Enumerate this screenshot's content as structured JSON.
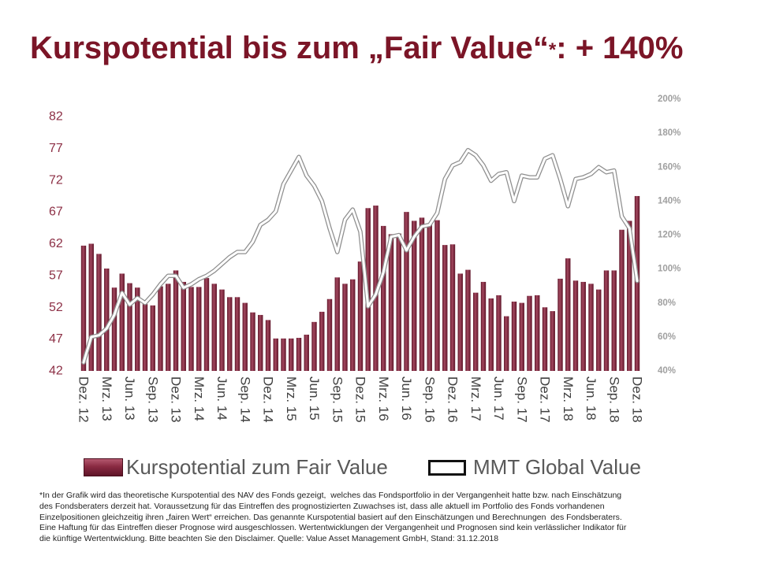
{
  "slide": {
    "title_main": "Kurspotential bis zum „Fair Value“",
    "title_asterisk": "*",
    "title_suffix": ": + 140%"
  },
  "chart_data": {
    "type": "bar",
    "categories": [
      "Dez. 12",
      "",
      "",
      "Mrz. 13",
      "",
      "",
      "Jun. 13",
      "",
      "",
      "Sep. 13",
      "",
      "",
      "Dez. 13",
      "",
      "",
      "Mrz. 14",
      "",
      "",
      "Jun. 14",
      "",
      "",
      "Sep. 14",
      "",
      "",
      "Dez. 14",
      "",
      "",
      "Mrz. 15",
      "",
      "",
      "Jun. 15",
      "",
      "",
      "Sep. 15",
      "",
      "",
      "Dez. 15",
      "",
      "",
      "Mrz. 16",
      "",
      "",
      "Jun. 16",
      "",
      "",
      "Sep. 16",
      "",
      "",
      "Dez. 16",
      "",
      "",
      "Mrz. 17",
      "",
      "",
      "Jun. 17",
      "",
      "",
      "Sep. 17",
      "",
      "",
      "Dez. 17",
      "",
      "",
      "Mrz. 18",
      "",
      "",
      "Jun. 18",
      "",
      "",
      "Sep. 18",
      "",
      "",
      "Dez. 18"
    ],
    "series": [
      {
        "name": "Kurspotential zum Fair Value",
        "type": "bar",
        "axis": "left",
        "values": [
          61.7,
          62.0,
          60.4,
          58.1,
          55.1,
          57.3,
          55.8,
          55.1,
          52.5,
          52.3,
          55.3,
          55.7,
          57.8,
          56.0,
          55.2,
          55.2,
          56.6,
          55.7,
          54.8,
          53.6,
          53.6,
          52.7,
          51.2,
          50.8,
          50.0,
          47.1,
          47.1,
          47.1,
          47.2,
          47.7,
          49.7,
          51.3,
          53.3,
          56.7,
          55.7,
          56.4,
          59.2,
          67.6,
          68.0,
          64.8,
          63.5,
          63.6,
          67.0,
          65.6,
          66.1,
          65.0,
          65.7,
          61.8,
          61.9,
          57.3,
          57.9,
          54.3,
          56.0,
          53.4,
          53.9,
          50.6,
          52.9,
          52.7,
          53.8,
          53.9,
          52.0,
          51.4,
          56.5,
          59.7,
          56.2,
          56.0,
          55.7,
          54.8,
          57.8,
          57.8,
          64.2,
          65.6,
          69.5
        ]
      },
      {
        "name": "MMT Global Value",
        "type": "line",
        "axis": "right",
        "values": [
          45,
          60,
          61,
          65,
          73,
          86,
          79,
          83,
          80,
          85,
          91,
          96,
          96,
          89,
          91,
          94,
          96,
          99,
          103,
          107,
          110,
          110,
          116,
          126,
          129,
          134,
          150,
          158,
          166,
          155,
          149,
          140,
          124,
          110,
          129,
          135,
          122,
          78,
          85,
          98,
          119,
          120,
          111,
          119,
          125,
          126,
          133,
          153,
          161,
          163,
          170,
          167,
          161,
          152,
          156,
          157,
          140,
          155,
          154,
          154,
          165,
          167,
          153,
          137,
          153,
          154,
          156,
          160,
          157,
          158,
          131,
          124,
          93
        ]
      }
    ],
    "y_left": {
      "ticks": [
        42,
        47,
        52,
        57,
        62,
        67,
        72,
        77,
        82
      ],
      "range": [
        42,
        82
      ]
    },
    "y_right": {
      "tick_labels": [
        "40%",
        "60%",
        "80%",
        "100%",
        "120%",
        "140%",
        "160%",
        "180%",
        "200%"
      ],
      "range": [
        40,
        200
      ]
    },
    "xlabel": "",
    "ylabel": "",
    "grid": false,
    "legend": "bottom"
  },
  "footnote": {
    "lines": [
      "*In der Grafik wird das theoretische Kurspotential des NAV des Fonds gezeigt,  welches das Fondsportfolio in der Vergangenheit hatte bzw. nach Einschätzung",
      "des Fondsberaters derzeit hat. Voraussetzung für das Eintreffen des prognostizierten Zuwachses ist, dass alle aktuell im Portfolio des Fonds vorhandenen",
      "Einzelpositionen gleichzeitig ihren „fairen Wert“ erreichen. Das genannte Kurspotential basiert auf den Einschätzungen und Berechnungen  des Fondsberaters.",
      "Eine Haftung für das Eintreffen dieser Prognose wird ausgeschlossen. Wertentwicklungen der Vergangenheit und Prognosen sind kein verlässlicher Indikator für",
      "die künftige Wertentwicklung. Bitte beachten Sie den Disclaimer. Quelle: Value Asset Management GmbH, Stand: 31.12.2018"
    ]
  },
  "colors": {
    "title": "#7b1527",
    "bar_dark": "#5e1428",
    "bar_light": "#a3485f",
    "line": "#ffffff",
    "line_outline": "#8e8e8e",
    "left_tick_labels": "#8c2f45",
    "right_tick_labels": "#a0a0a0",
    "x_tick_labels": "#404040"
  }
}
